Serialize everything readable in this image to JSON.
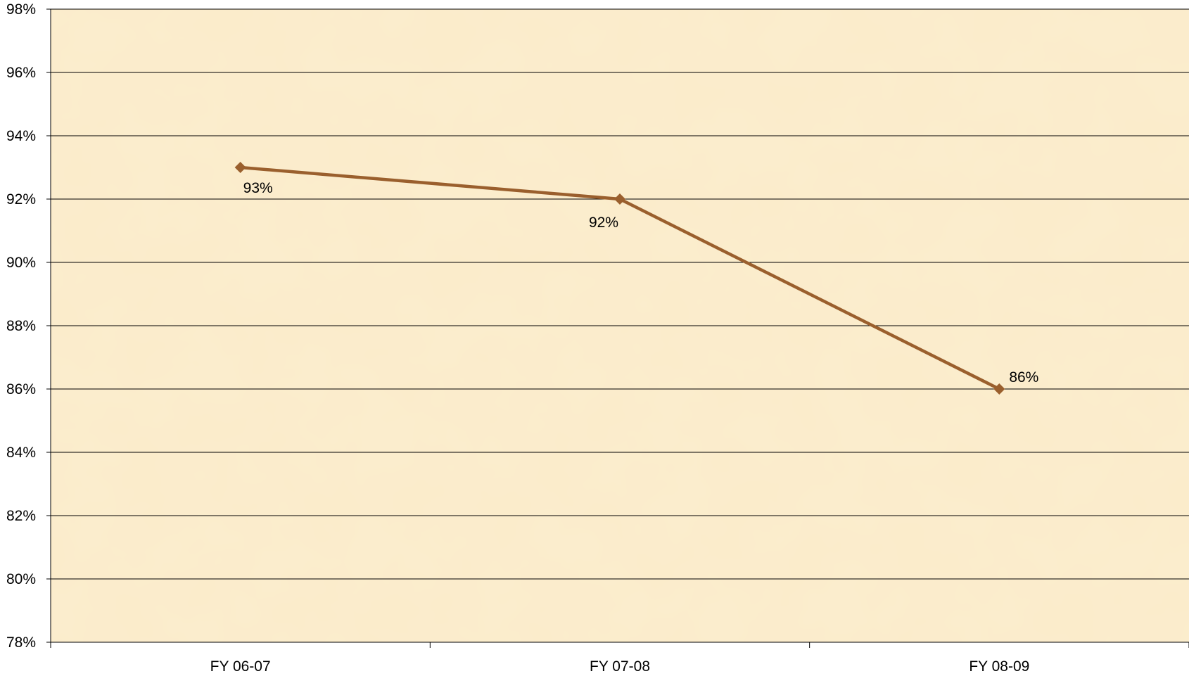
{
  "chart_data": {
    "type": "line",
    "title": "",
    "xlabel": "",
    "ylabel": "",
    "categories": [
      "FY 06-07",
      "FY 07-08",
      "FY 08-09"
    ],
    "series": [
      {
        "values": [
          93,
          92,
          86
        ],
        "data_labels": [
          "93%",
          "92%",
          "86%"
        ],
        "color": "#9a5f2d",
        "marker": "diamond"
      }
    ],
    "ylim": [
      78,
      98
    ],
    "y_ticks": [
      78,
      80,
      82,
      84,
      86,
      88,
      90,
      92,
      94,
      96,
      98
    ],
    "y_tick_labels": [
      "78%",
      "80%",
      "82%",
      "84%",
      "86%",
      "88%",
      "90%",
      "92%",
      "94%",
      "96%",
      "98%"
    ],
    "grid": true,
    "legend": "none",
    "plot_background": "#fbeccb",
    "gridline_color": "#000000"
  }
}
